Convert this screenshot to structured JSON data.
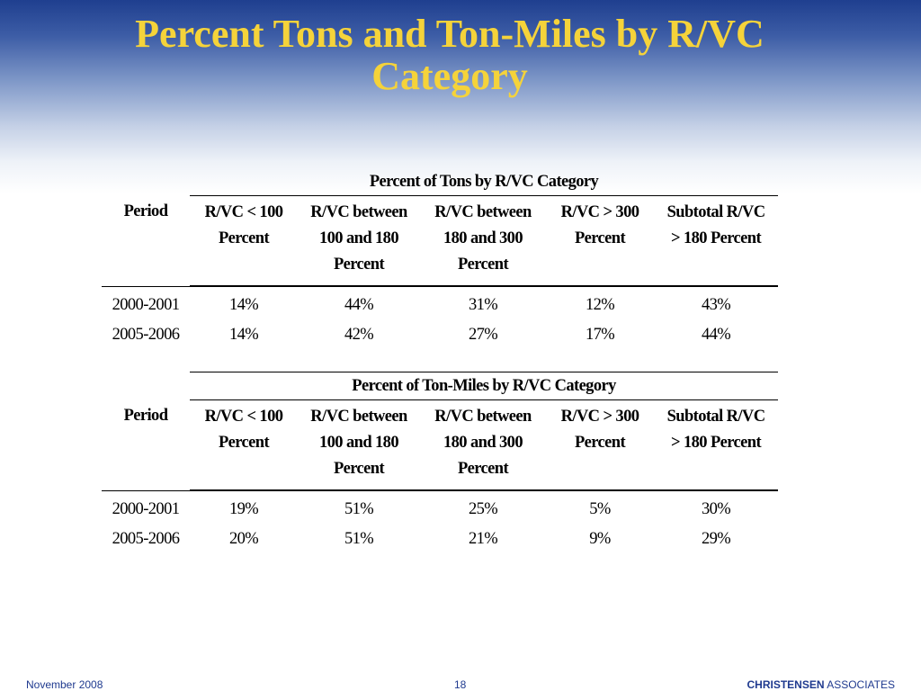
{
  "slide": {
    "title_line1": "Percent Tons and Ton-Miles by R/VC",
    "title_line2": "Category",
    "title_color": "#f5d33a"
  },
  "tables": {
    "tons": {
      "caption": "Percent of Tons by R/VC Category",
      "period_header": "Period",
      "columns": [
        {
          "line1": "R/VC < 100",
          "line2": "Percent",
          "line3": ""
        },
        {
          "line1": "R/VC between",
          "line2": "100 and 180",
          "line3": "Percent"
        },
        {
          "line1": "R/VC between",
          "line2": "180 and 300",
          "line3": "Percent"
        },
        {
          "line1": "R/VC > 300",
          "line2": "Percent",
          "line3": ""
        },
        {
          "line1": "Subtotal R/VC",
          "line2": "> 180 Percent",
          "line3": ""
        }
      ],
      "rows": [
        {
          "period": "2000-2001",
          "values": [
            "14%",
            "44%",
            "31%",
            "12%",
            "43%"
          ]
        },
        {
          "period": "2005-2006",
          "values": [
            "14%",
            "42%",
            "27%",
            "17%",
            "44%"
          ]
        }
      ]
    },
    "ton_miles": {
      "caption": "Percent of Ton-Miles by R/VC Category",
      "period_header": "Period",
      "columns": [
        {
          "line1": "R/VC < 100",
          "line2": "Percent",
          "line3": ""
        },
        {
          "line1": "R/VC between",
          "line2": "100 and 180",
          "line3": "Percent"
        },
        {
          "line1": "R/VC between",
          "line2": "180 and 300",
          "line3": "Percent"
        },
        {
          "line1": "R/VC > 300",
          "line2": "Percent",
          "line3": ""
        },
        {
          "line1": "Subtotal R/VC",
          "line2": "> 180 Percent",
          "line3": ""
        }
      ],
      "rows": [
        {
          "period": "2000-2001",
          "values": [
            "19%",
            "51%",
            "25%",
            "5%",
            "30%"
          ]
        },
        {
          "period": "2005-2006",
          "values": [
            "20%",
            "51%",
            "21%",
            "9%",
            "29%"
          ]
        }
      ]
    }
  },
  "footer": {
    "date": "November 2008",
    "page_number": "18",
    "company_bold": "CHRISTENSEN",
    "company_rest": " ASSOCIATES",
    "color": "#1f3a8f"
  }
}
